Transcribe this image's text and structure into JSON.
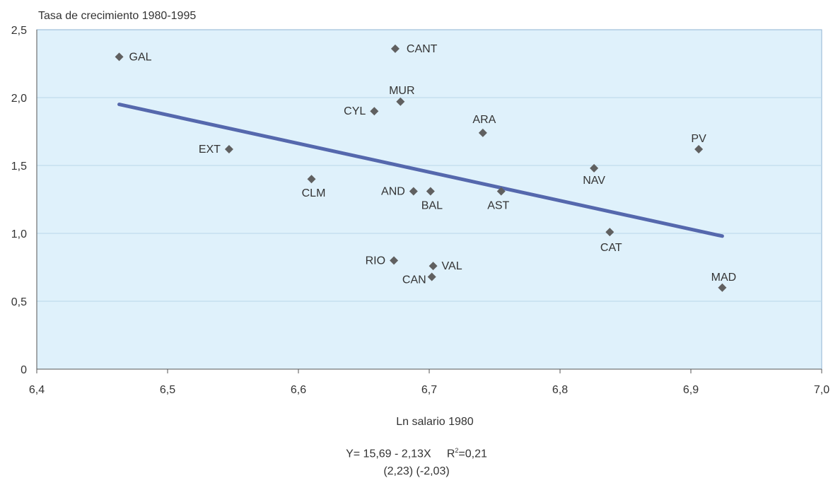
{
  "chart_data": {
    "type": "scatter",
    "ylabel": "Tasa de crecimiento 1980-1995",
    "xlabel": "Ln salario 1980",
    "xlim": [
      6.4,
      7.0
    ],
    "ylim": [
      0,
      2.5
    ],
    "x_ticks": [
      "6,4",
      "6,5",
      "6,6",
      "6,7",
      "6,8",
      "6,9",
      "7,0"
    ],
    "y_ticks": [
      "0",
      "0,5",
      "1,0",
      "1,5",
      "2,0",
      "2,5"
    ],
    "grid": "horizontal",
    "points": [
      {
        "label": "GAL",
        "x": 6.463,
        "y": 2.3
      },
      {
        "label": "CANT",
        "x": 6.674,
        "y": 2.36
      },
      {
        "label": "MUR",
        "x": 6.678,
        "y": 1.97
      },
      {
        "label": "CYL",
        "x": 6.658,
        "y": 1.9
      },
      {
        "label": "ARA",
        "x": 6.741,
        "y": 1.74
      },
      {
        "label": "PV",
        "x": 6.906,
        "y": 1.62
      },
      {
        "label": "EXT",
        "x": 6.547,
        "y": 1.62
      },
      {
        "label": "NAV",
        "x": 6.826,
        "y": 1.48
      },
      {
        "label": "CLM",
        "x": 6.61,
        "y": 1.4
      },
      {
        "label": "AND",
        "x": 6.688,
        "y": 1.31
      },
      {
        "label": "BAL",
        "x": 6.701,
        "y": 1.31
      },
      {
        "label": "AST",
        "x": 6.755,
        "y": 1.31
      },
      {
        "label": "CAT",
        "x": 6.838,
        "y": 1.01
      },
      {
        "label": "RIO",
        "x": 6.673,
        "y": 0.8
      },
      {
        "label": "VAL",
        "x": 6.703,
        "y": 0.76
      },
      {
        "label": "CAN",
        "x": 6.702,
        "y": 0.68
      },
      {
        "label": "MAD",
        "x": 6.924,
        "y": 0.6
      }
    ],
    "trendline": {
      "x": [
        6.463,
        6.924
      ],
      "y": [
        1.95,
        0.98
      ]
    },
    "colors": {
      "point": "#606060",
      "trend": "#5568ad",
      "plot_bg": "#dff1fb",
      "grid": "#b9d8ea",
      "frame": "#8fb3d3"
    }
  },
  "equation": {
    "main": "Y= 15,69  -  2,13X",
    "r2_prefix": "R",
    "r2_sup": "2",
    "r2_value": "=0,21",
    "t_stats": "(2,23)    (-2,03)"
  }
}
